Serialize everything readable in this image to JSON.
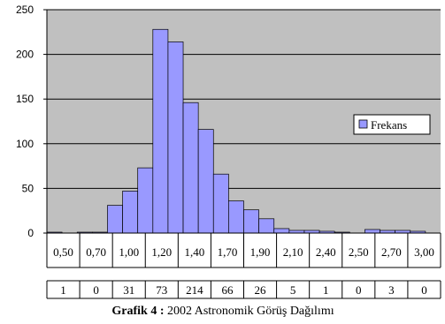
{
  "chart_data": {
    "type": "bar",
    "ylim": [
      0,
      250
    ],
    "y_ticks": [
      "0",
      "50",
      "100",
      "150",
      "200",
      "250"
    ],
    "grid": true,
    "legend_placement": "right",
    "series": [
      {
        "name": "Frekans",
        "color": "#9999ff",
        "values": [
          1,
          0,
          1,
          1,
          31,
          47,
          73,
          228,
          214,
          146,
          116,
          66,
          36,
          26,
          16,
          5,
          3,
          3,
          2,
          1,
          0,
          4,
          3,
          3,
          2,
          0
        ]
      }
    ],
    "table": {
      "header": [
        "0,50",
        "0,70",
        "1,00",
        "1,20",
        "1,40",
        "1,70",
        "1,90",
        "2,10",
        "2,40",
        "2,50",
        "2,70",
        "3,00"
      ],
      "counts": [
        "1",
        "0",
        "31",
        "73",
        "214",
        "66",
        "26",
        "5",
        "1",
        "0",
        "3",
        "0"
      ]
    },
    "caption_prefix": "Grafik 4 :",
    "caption_text": " 2002 Astronomik Görüş Dağılımı"
  }
}
